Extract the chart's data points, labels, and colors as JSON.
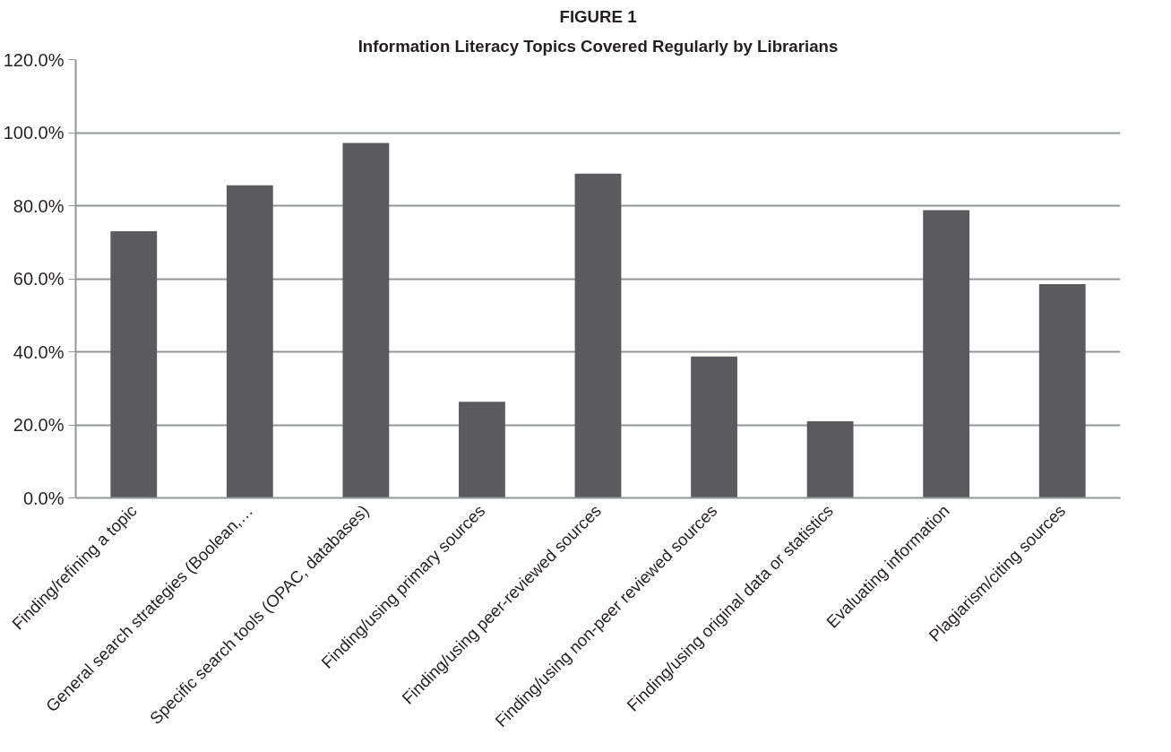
{
  "chart_data": {
    "type": "bar",
    "title": "FIGURE 1",
    "subtitle": "Information Literacy Topics Covered Regularly by Librarians",
    "categories": [
      "Finding/refining a topic",
      "General search strategies (Boolean,…",
      "Specific search tools (OPAC, databases)",
      "Finding/using primary sources",
      "Finding/using peer-reviewed sources",
      "Finding/using non-peer reviewed sources",
      "Finding/using original data or statistics",
      "Evaluating information",
      "Plagiarism/citing sources"
    ],
    "values": [
      73.0,
      85.6,
      97.2,
      26.3,
      88.8,
      38.7,
      21.0,
      78.8,
      58.5
    ],
    "color": "#5b5b5d",
    "ylim": [
      0,
      120
    ],
    "yticks": [
      {
        "value": 0,
        "label": "0.0%"
      },
      {
        "value": 20,
        "label": "20.0%"
      },
      {
        "value": 40,
        "label": "40.0%"
      },
      {
        "value": 60,
        "label": "60.0%"
      },
      {
        "value": 80,
        "label": "80.0%"
      },
      {
        "value": 100,
        "label": "100.0%"
      },
      {
        "value": 120,
        "label": "120.0%"
      }
    ],
    "grid": "y"
  }
}
